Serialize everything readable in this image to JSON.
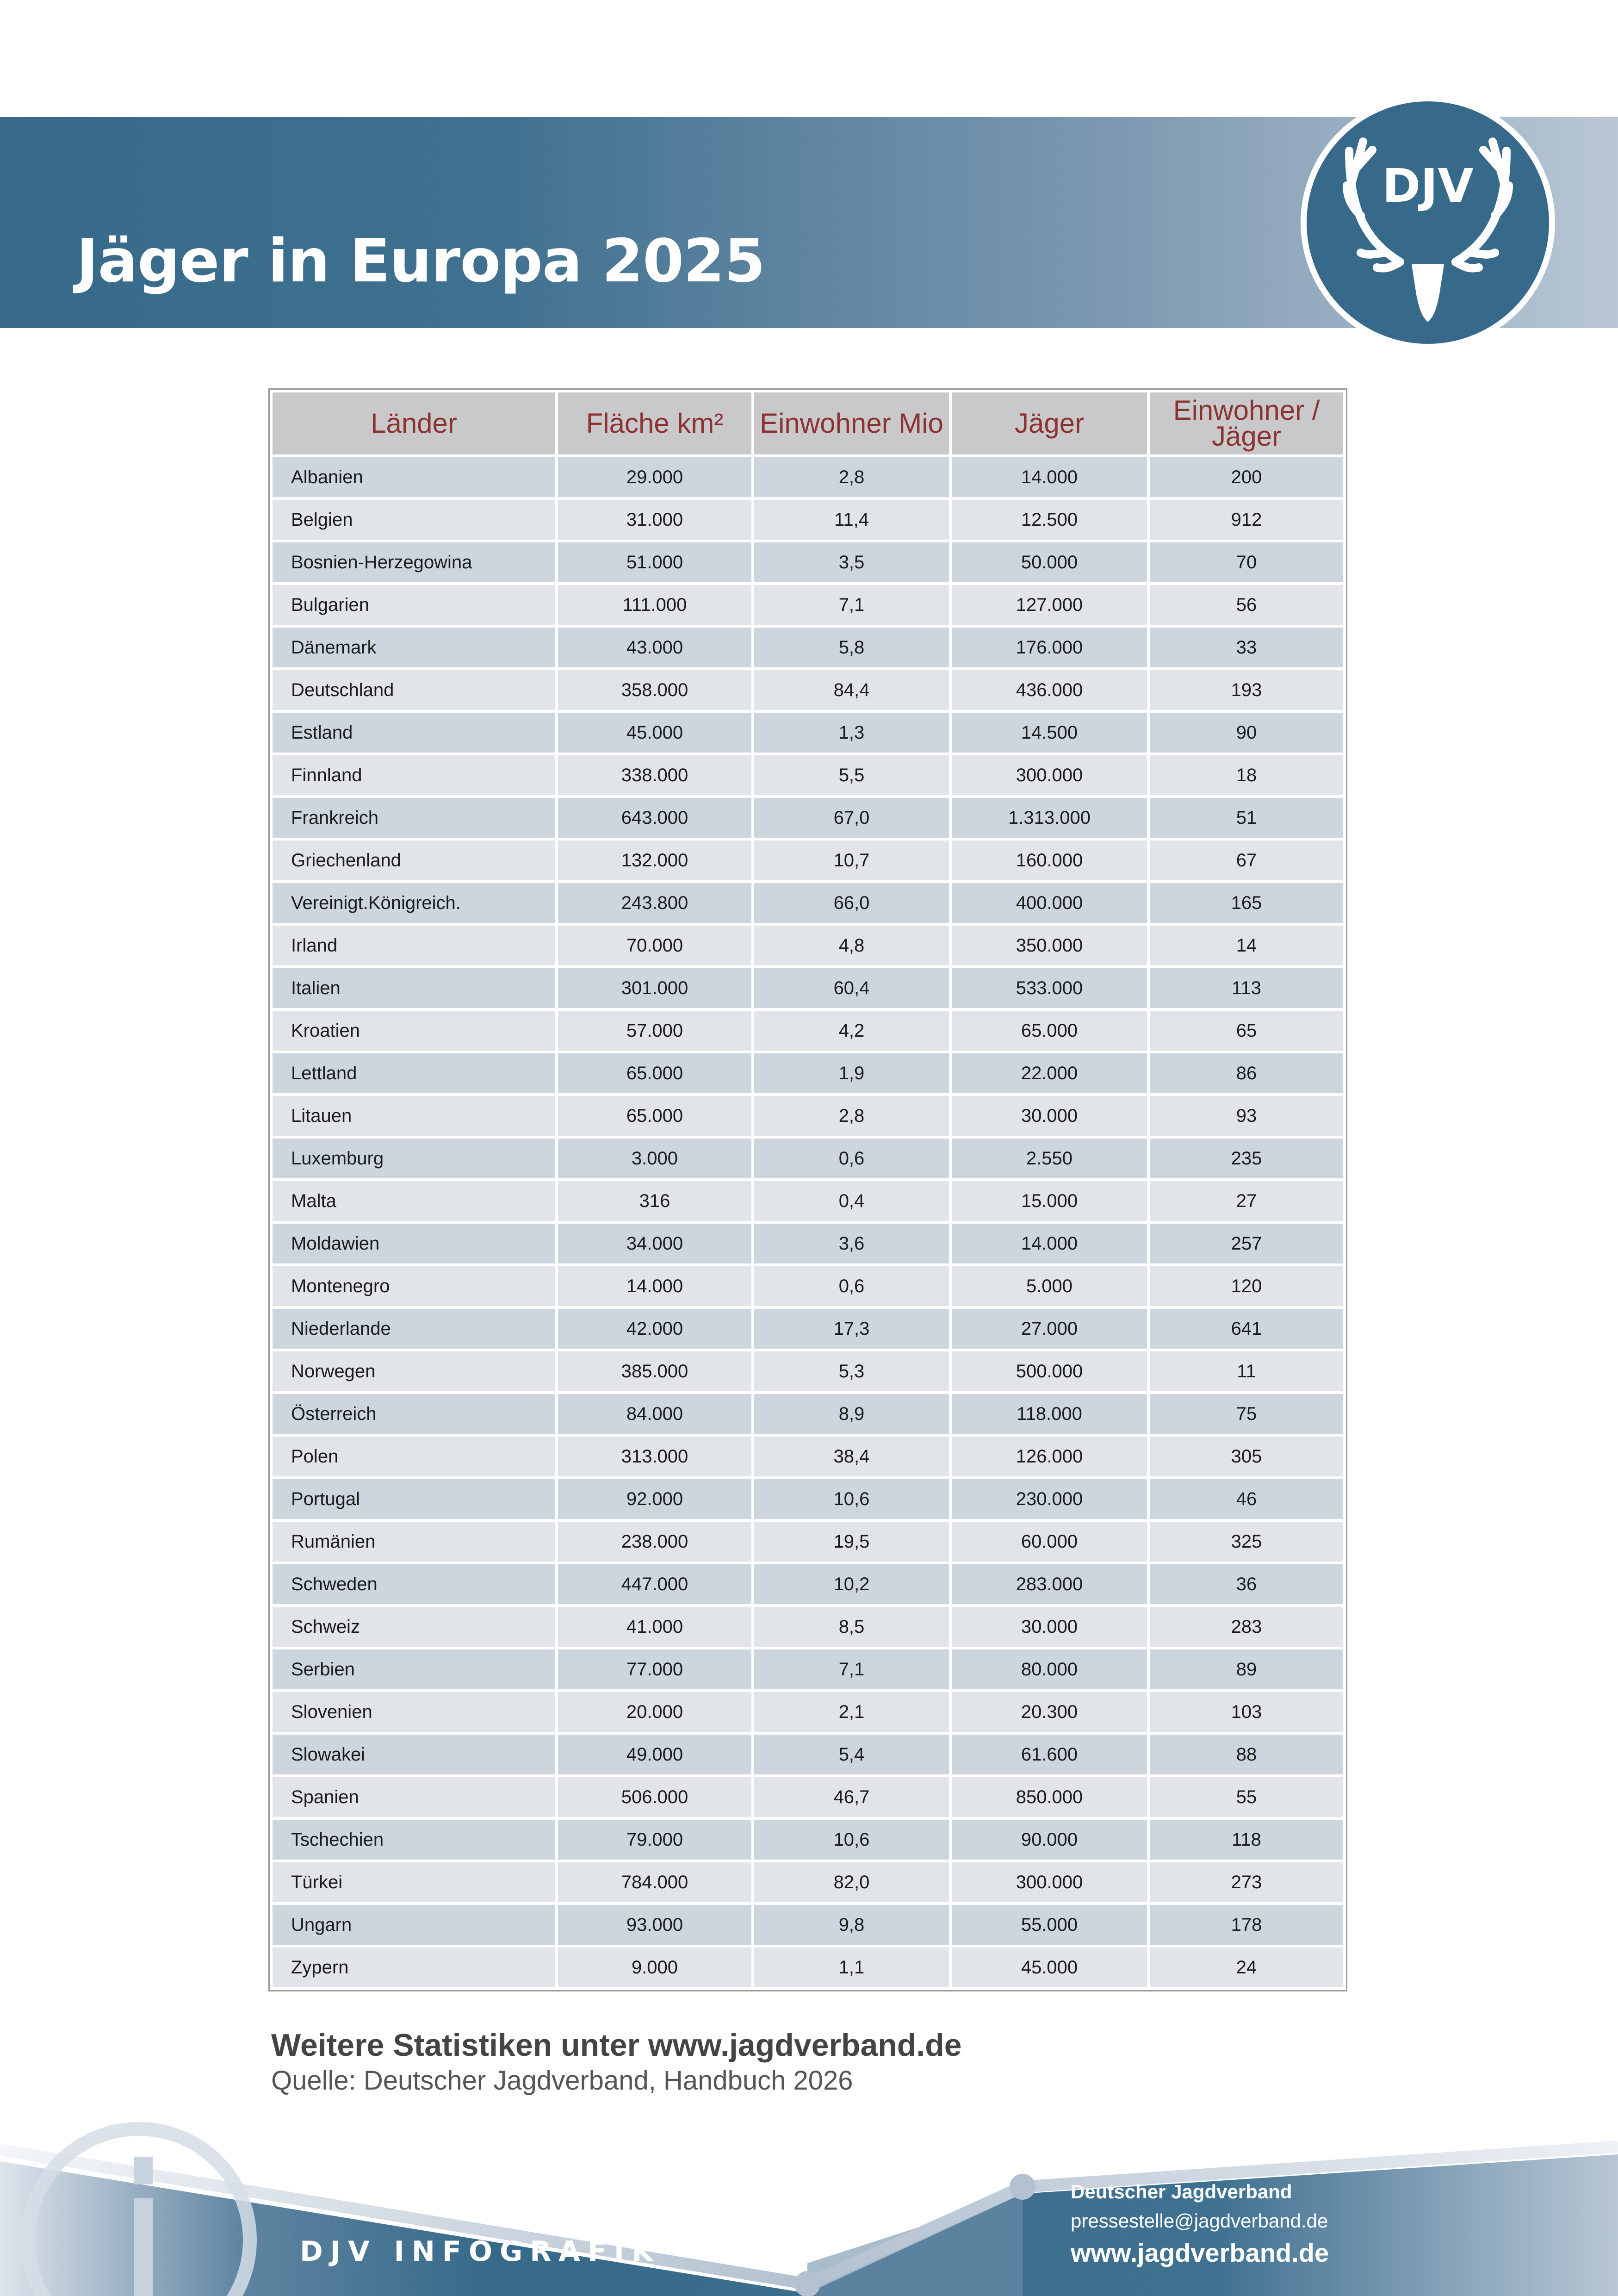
{
  "header": {
    "title": "Jäger in Europa 2025",
    "logo_text": "DJV"
  },
  "table": {
    "columns": [
      "Länder",
      "Fläche km²",
      "Einwohner Mio",
      "Jäger",
      "Einwohner / Jäger"
    ],
    "rows": [
      [
        "Albanien",
        "29.000",
        "2,8",
        "14.000",
        "200"
      ],
      [
        "Belgien",
        "31.000",
        "11,4",
        "12.500",
        "912"
      ],
      [
        "Bosnien-Herzegowina",
        "51.000",
        "3,5",
        "50.000",
        "70"
      ],
      [
        "Bulgarien",
        "111.000",
        "7,1",
        "127.000",
        "56"
      ],
      [
        "Dänemark",
        "43.000",
        "5,8",
        "176.000",
        "33"
      ],
      [
        "Deutschland",
        "358.000",
        "84,4",
        "436.000",
        "193"
      ],
      [
        "Estland",
        "45.000",
        "1,3",
        "14.500",
        "90"
      ],
      [
        "Finnland",
        "338.000",
        "5,5",
        "300.000",
        "18"
      ],
      [
        "Frankreich",
        "643.000",
        "67,0",
        "1.313.000",
        "51"
      ],
      [
        "Griechenland",
        "132.000",
        "10,7",
        "160.000",
        "67"
      ],
      [
        "Vereinigt.Königreich.",
        "243.800",
        "66,0",
        "400.000",
        "165"
      ],
      [
        "Irland",
        "70.000",
        "4,8",
        "350.000",
        "14"
      ],
      [
        "Italien",
        "301.000",
        "60,4",
        "533.000",
        "113"
      ],
      [
        "Kroatien",
        "57.000",
        "4,2",
        "65.000",
        "65"
      ],
      [
        "Lettland",
        "65.000",
        "1,9",
        "22.000",
        "86"
      ],
      [
        "Litauen",
        "65.000",
        "2,8",
        "30.000",
        "93"
      ],
      [
        "Luxemburg",
        "3.000",
        "0,6",
        "2.550",
        "235"
      ],
      [
        "Malta",
        "316",
        "0,4",
        "15.000",
        "27"
      ],
      [
        "Moldawien",
        "34.000",
        "3,6",
        "14.000",
        "257"
      ],
      [
        "Montenegro",
        "14.000",
        "0,6",
        "5.000",
        "120"
      ],
      [
        "Niederlande",
        "42.000",
        "17,3",
        "27.000",
        "641"
      ],
      [
        "Norwegen",
        "385.000",
        "5,3",
        "500.000",
        "11"
      ],
      [
        "Österreich",
        "84.000",
        "8,9",
        "118.000",
        "75"
      ],
      [
        "Polen",
        "313.000",
        "38,4",
        "126.000",
        "305"
      ],
      [
        "Portugal",
        "92.000",
        "10,6",
        "230.000",
        "46"
      ],
      [
        "Rumänien",
        "238.000",
        "19,5",
        "60.000",
        "325"
      ],
      [
        "Schweden",
        "447.000",
        "10,2",
        "283.000",
        "36"
      ],
      [
        "Schweiz",
        "41.000",
        "8,5",
        "30.000",
        "283"
      ],
      [
        "Serbien",
        "77.000",
        "7,1",
        "80.000",
        "89"
      ],
      [
        "Slovenien",
        "20.000",
        "2,1",
        "20.300",
        "103"
      ],
      [
        "Slowakei",
        "49.000",
        "5,4",
        "61.600",
        "88"
      ],
      [
        "Spanien",
        "506.000",
        "46,7",
        "850.000",
        "55"
      ],
      [
        "Tschechien",
        "79.000",
        "10,6",
        "90.000",
        "118"
      ],
      [
        "Türkei",
        "784.000",
        "82,0",
        "300.000",
        "273"
      ],
      [
        "Ungarn",
        "93.000",
        "9,8",
        "55.000",
        "178"
      ],
      [
        "Zypern",
        "9.000",
        "1,1",
        "45.000",
        "24"
      ]
    ]
  },
  "notes": {
    "more": "Weitere Statistiken unter www.jagdverband.de",
    "source": "Quelle: Deutscher Jagdverband, Handbuch 2026"
  },
  "footer": {
    "brand": "DJV INFOGRAFIK",
    "org": "Deutscher Jagdverband",
    "email": "pressestelle@jagdverband.de",
    "web": "www.jagdverband.de"
  },
  "colors": {
    "brand_blue": "#376a8a",
    "header_text": "#8b3232",
    "row_odd": "#cdd6df",
    "row_even": "#e1e4e8"
  }
}
